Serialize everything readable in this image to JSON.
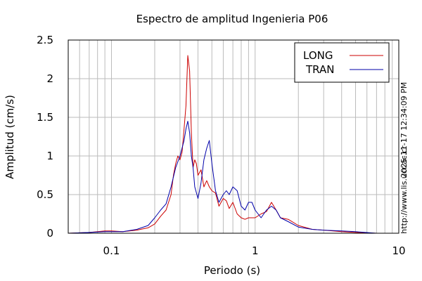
{
  "chart_data": {
    "type": "line",
    "title": "Espectro de amplitud Ingenieria P06",
    "xlabel": "Periodo (s)",
    "ylabel": "Amplitud (cm/s)",
    "x_scale": "log",
    "xlim": [
      0.05,
      10
    ],
    "ylim": [
      0,
      2.5
    ],
    "x_ticks": [
      0.1,
      1,
      10
    ],
    "x_tick_labels": [
      "0.1",
      "1",
      "10"
    ],
    "y_ticks": [
      0,
      0.5,
      1,
      1.5,
      2,
      2.5
    ],
    "y_tick_labels": [
      "0",
      "0.5",
      "1",
      "1.5",
      "2",
      "2.5"
    ],
    "grid": true,
    "legend_position": "top-right",
    "series": [
      {
        "name": "LONG",
        "color": "#cc0000",
        "x": [
          0.05,
          0.07,
          0.09,
          0.1,
          0.12,
          0.15,
          0.18,
          0.2,
          0.22,
          0.24,
          0.26,
          0.27,
          0.28,
          0.29,
          0.3,
          0.31,
          0.32,
          0.33,
          0.34,
          0.35,
          0.36,
          0.37,
          0.38,
          0.39,
          0.4,
          0.42,
          0.44,
          0.46,
          0.48,
          0.5,
          0.53,
          0.56,
          0.6,
          0.63,
          0.66,
          0.7,
          0.75,
          0.8,
          0.85,
          0.9,
          1.0,
          1.1,
          1.2,
          1.3,
          1.4,
          1.5,
          1.7,
          2.0,
          2.5,
          3.0,
          4.0,
          5.0,
          7.0,
          10.0
        ],
        "y": [
          0.0,
          0.01,
          0.03,
          0.03,
          0.02,
          0.04,
          0.07,
          0.12,
          0.22,
          0.3,
          0.5,
          0.75,
          0.9,
          1.0,
          0.95,
          1.05,
          1.35,
          1.65,
          2.3,
          2.1,
          1.3,
          0.85,
          0.95,
          0.9,
          0.75,
          0.82,
          0.6,
          0.68,
          0.6,
          0.55,
          0.52,
          0.35,
          0.45,
          0.42,
          0.32,
          0.4,
          0.25,
          0.2,
          0.18,
          0.2,
          0.2,
          0.25,
          0.28,
          0.4,
          0.3,
          0.2,
          0.18,
          0.1,
          0.05,
          0.04,
          0.02,
          0.01,
          0.0,
          0.0
        ]
      },
      {
        "name": "TRAN",
        "color": "#0000aa",
        "x": [
          0.05,
          0.07,
          0.09,
          0.1,
          0.12,
          0.15,
          0.18,
          0.2,
          0.22,
          0.24,
          0.26,
          0.28,
          0.3,
          0.32,
          0.33,
          0.34,
          0.35,
          0.36,
          0.37,
          0.38,
          0.4,
          0.42,
          0.44,
          0.46,
          0.48,
          0.5,
          0.53,
          0.56,
          0.6,
          0.63,
          0.66,
          0.7,
          0.75,
          0.8,
          0.85,
          0.9,
          0.95,
          1.0,
          1.1,
          1.2,
          1.3,
          1.4,
          1.5,
          1.7,
          2.0,
          2.5,
          3.0,
          4.0,
          5.0,
          7.0,
          10.0
        ],
        "y": [
          0.0,
          0.01,
          0.02,
          0.02,
          0.02,
          0.05,
          0.1,
          0.2,
          0.3,
          0.38,
          0.6,
          0.85,
          1.0,
          1.2,
          1.35,
          1.45,
          1.3,
          1.0,
          0.85,
          0.6,
          0.45,
          0.65,
          0.95,
          1.1,
          1.2,
          0.9,
          0.55,
          0.4,
          0.5,
          0.55,
          0.5,
          0.6,
          0.55,
          0.35,
          0.3,
          0.4,
          0.4,
          0.3,
          0.2,
          0.3,
          0.35,
          0.3,
          0.2,
          0.15,
          0.08,
          0.05,
          0.04,
          0.03,
          0.02,
          0.0,
          0.0
        ]
      }
    ],
    "side_annotations": [
      "2025-11-17 12:34:09 PM",
      "http://www.lis.ucr.ac.cr"
    ]
  }
}
